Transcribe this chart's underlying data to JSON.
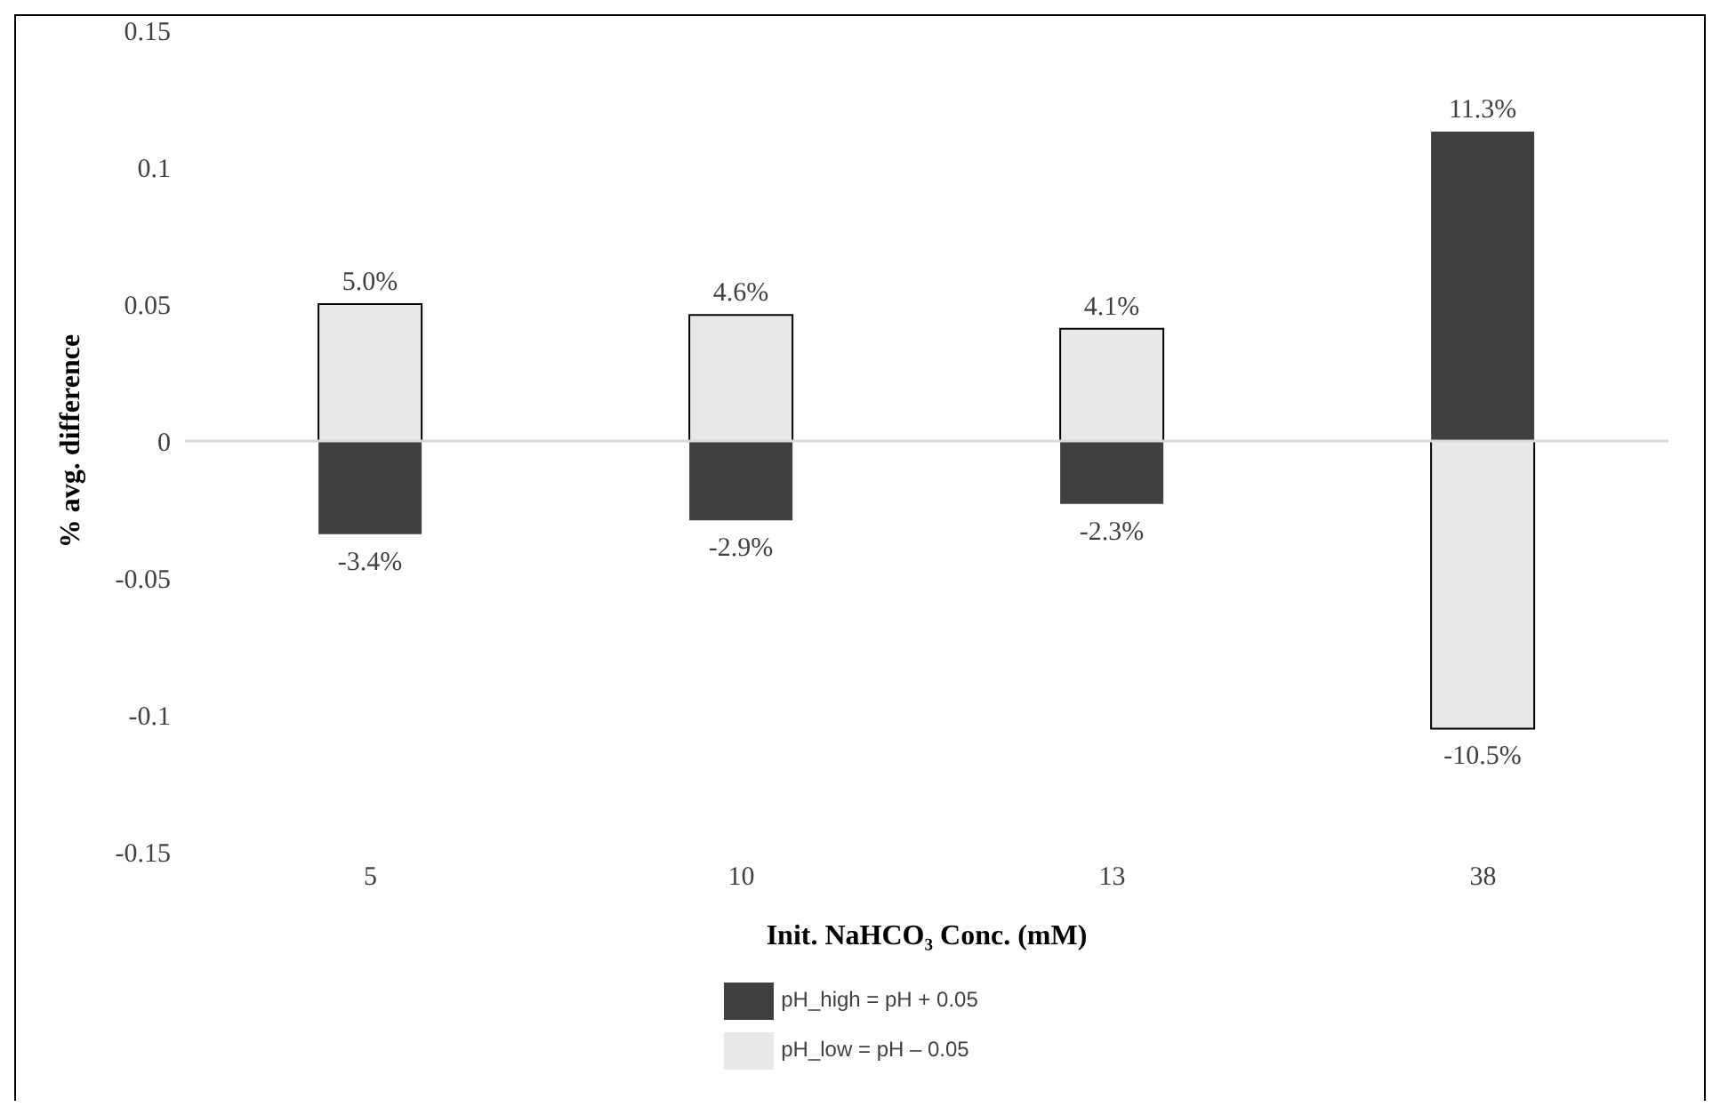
{
  "chart_data": {
    "type": "bar",
    "stacked": true,
    "xlabel": "Init. NaHCO₃ Conc. (mM)",
    "ylabel": "% avg. difference",
    "categories": [
      "5",
      "10",
      "13",
      "38"
    ],
    "series": [
      {
        "name": "pH_low = pH – 0.05",
        "color": "#e8e8e8",
        "values": [
          0.05,
          0.046,
          0.041,
          -0.105
        ],
        "value_labels": [
          "5.0%",
          "4.6%",
          "4.1%",
          "-10.5%"
        ]
      },
      {
        "name": "pH_high = pH + 0.05",
        "color": "#404040",
        "values": [
          -0.034,
          -0.029,
          -0.023,
          0.113
        ],
        "value_labels": [
          "-3.4%",
          "-2.9%",
          "-2.3%",
          "11.3%"
        ]
      }
    ],
    "ylim": [
      -0.15,
      0.15
    ],
    "yticks": [
      -0.15,
      -0.1,
      -0.05,
      0,
      0.05,
      0.1,
      0.15
    ],
    "ref_lines": [
      {
        "axis": "y",
        "value": 0,
        "color": "#d9d9d9"
      }
    ],
    "grid": false,
    "legend": "bottom"
  }
}
